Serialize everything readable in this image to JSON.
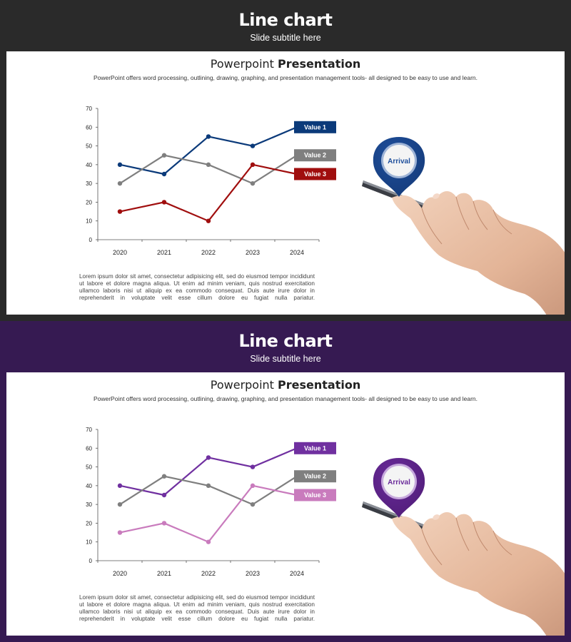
{
  "slides": [
    {
      "theme": "dark",
      "header_bg": "#2a2a2a",
      "title": "Line chart",
      "subtitle": "Slide subtitle here",
      "heading_light": "Powerpoint ",
      "heading_bold": "Presentation",
      "intro": "PowerPoint offers word processing, outlining, drawing, graphing, and presentation management tools- all designed to be easy to use and learn.",
      "lorem": "Lorem ipsum dolor sit amet, consectetur adipisicing elit, sed do eiusmod tempor incididunt ut labore et dolore magna aliqua. Ut enim ad minim veniam, quis nostrud exercitation ullamco laboris nisi ut aliquip ex ea commodo consequat. Duis aute irure dolor in reprehenderit in voluptate velit esse cillum dolore eu fugiat nulla pariatur.",
      "pin_label": "Arrival",
      "pin_color": "#1f4f9c",
      "pin_color_dark": "#143a78",
      "pin_ring": "#9fb4d6"
    },
    {
      "theme": "purple",
      "header_bg": "#361a52",
      "title": "Line chart",
      "subtitle": "Slide subtitle here",
      "heading_light": "Powerpoint ",
      "heading_bold": "Presentation",
      "intro": "PowerPoint offers word processing, outlining, drawing, graphing, and presentation management tools- all designed to be easy to use and learn.",
      "lorem": "Lorem ipsum dolor sit amet, consectetur adipisicing elit, sed do eiusmod tempor incididunt ut labore et dolore magna aliqua. Ut enim ad minim veniam, quis nostrud exercitation ullamco laboris nisi ut aliquip ex ea commodo consequat. Duis aute irure dolor in reprehenderit in voluptate velit esse cillum dolore eu fugiat nulla pariatur.",
      "pin_label": "Arrival",
      "pin_color": "#6a2b9a",
      "pin_color_dark": "#4f1c77",
      "pin_ring": "#c6a8dc"
    }
  ],
  "chart_data": [
    {
      "type": "line",
      "categories": [
        "2020",
        "2021",
        "2022",
        "2023",
        "2024"
      ],
      "ylim": [
        0,
        70
      ],
      "yticks": [
        0,
        10,
        20,
        30,
        40,
        50,
        60,
        70
      ],
      "grid": false,
      "legend": "labels at line ends",
      "series": [
        {
          "name": "Value 1",
          "values": [
            40,
            35,
            55,
            50,
            60
          ],
          "color": "#0b3a7a"
        },
        {
          "name": "Value 2",
          "values": [
            30,
            45,
            40,
            30,
            45
          ],
          "color": "#7f7f7f"
        },
        {
          "name": "Value 3",
          "values": [
            15,
            20,
            10,
            40,
            35
          ],
          "color": "#a00e0e"
        }
      ]
    },
    {
      "type": "line",
      "categories": [
        "2020",
        "2021",
        "2022",
        "2023",
        "2024"
      ],
      "ylim": [
        0,
        70
      ],
      "yticks": [
        0,
        10,
        20,
        30,
        40,
        50,
        60,
        70
      ],
      "grid": false,
      "legend": "labels at line ends",
      "series": [
        {
          "name": "Value 1",
          "values": [
            40,
            35,
            55,
            50,
            60
          ],
          "color": "#7030a0"
        },
        {
          "name": "Value 2",
          "values": [
            30,
            45,
            40,
            30,
            45
          ],
          "color": "#7f7f7f"
        },
        {
          "name": "Value 3",
          "values": [
            15,
            20,
            10,
            40,
            35
          ],
          "color": "#c97bbd"
        }
      ]
    }
  ]
}
